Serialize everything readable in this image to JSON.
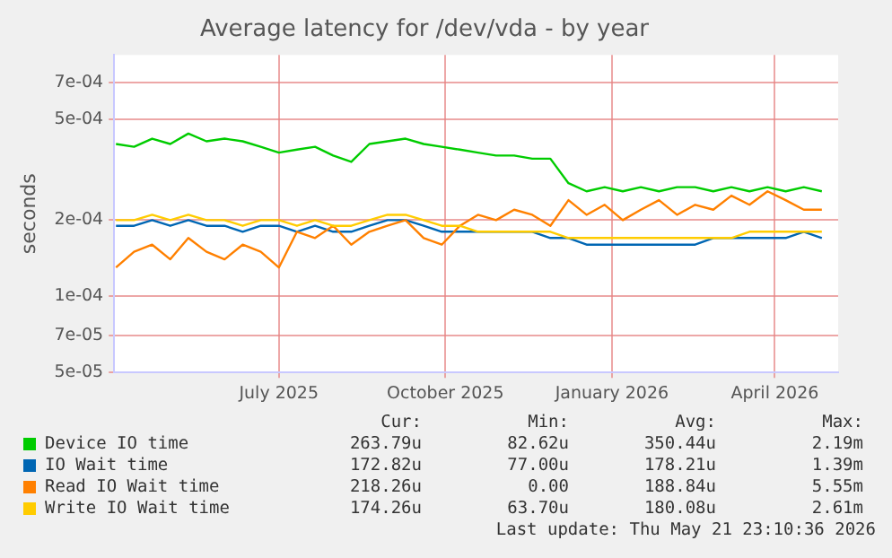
{
  "chart_data": {
    "type": "line",
    "title": "Average latency for /dev/vda - by year",
    "ylabel": "seconds",
    "log": "y",
    "grid": true,
    "legend": "bottom",
    "marker": "none",
    "line_style": "solid",
    "x": [
      "2025-04-17",
      "2025-04-27",
      "2025-05-07",
      "2025-05-17",
      "2025-05-27",
      "2025-06-06",
      "2025-06-16",
      "2025-06-26",
      "2025-07-06",
      "2025-07-16",
      "2025-07-26",
      "2025-08-05",
      "2025-08-15",
      "2025-08-25",
      "2025-09-04",
      "2025-09-14",
      "2025-09-24",
      "2025-10-04",
      "2025-10-14",
      "2025-10-24",
      "2025-11-03",
      "2025-11-13",
      "2025-11-23",
      "2025-12-03",
      "2025-12-13",
      "2025-12-23",
      "2026-01-02",
      "2026-01-12",
      "2026-01-22",
      "2026-02-01",
      "2026-02-11",
      "2026-02-21",
      "2026-03-03",
      "2026-03-13",
      "2026-03-23",
      "2026-04-02",
      "2026-04-12",
      "2026-04-22",
      "2026-05-02",
      "2026-05-12"
    ],
    "xlim": [
      "2025-04-16",
      "2026-05-21"
    ],
    "xticks": [
      {
        "value": "2025-07-16",
        "label": "July 2025"
      },
      {
        "value": "2025-10-16",
        "label": "October 2025"
      },
      {
        "value": "2026-01-16",
        "label": "January 2026"
      },
      {
        "value": "2026-04-16",
        "label": "April 2026"
      }
    ],
    "ylim": [
      5e-05,
      0.0009
    ],
    "yticks": [
      {
        "value": 5e-05,
        "label": "5e-05"
      },
      {
        "value": 7e-05,
        "label": "7e-05"
      },
      {
        "value": 0.0001,
        "label": "1e-04"
      },
      {
        "value": 0.0002,
        "label": "2e-04"
      },
      {
        "value": 0.0005,
        "label": "5e-04"
      },
      {
        "value": 0.0007,
        "label": "7e-04"
      }
    ],
    "series": [
      {
        "name": "Device IO time",
        "color": "#00cc00",
        "values": [
          0.0004,
          0.00039,
          0.00042,
          0.0004,
          0.00044,
          0.00041,
          0.00042,
          0.00041,
          0.00039,
          0.00037,
          0.00038,
          0.00039,
          0.00036,
          0.00034,
          0.0004,
          0.00041,
          0.00042,
          0.0004,
          0.00039,
          0.00038,
          0.00037,
          0.00036,
          0.00036,
          0.00035,
          0.00035,
          0.00028,
          0.00026,
          0.00027,
          0.00026,
          0.00027,
          0.00026,
          0.00027,
          0.00027,
          0.00026,
          0.00027,
          0.00026,
          0.00027,
          0.00026,
          0.00027,
          0.00026
        ]
      },
      {
        "name": "IO Wait time",
        "color": "#0066b3",
        "values": [
          0.00019,
          0.00019,
          0.0002,
          0.00019,
          0.0002,
          0.00019,
          0.00019,
          0.00018,
          0.00019,
          0.00019,
          0.00018,
          0.00019,
          0.00018,
          0.00018,
          0.00019,
          0.0002,
          0.0002,
          0.00019,
          0.00018,
          0.00018,
          0.00018,
          0.00018,
          0.00018,
          0.00018,
          0.00017,
          0.00017,
          0.00016,
          0.00016,
          0.00016,
          0.00016,
          0.00016,
          0.00016,
          0.00016,
          0.00017,
          0.00017,
          0.00017,
          0.00017,
          0.00017,
          0.00018,
          0.00017
        ]
      },
      {
        "name": "Read IO Wait time",
        "color": "#ff8000",
        "values": [
          0.00013,
          0.00015,
          0.00016,
          0.00014,
          0.00017,
          0.00015,
          0.00014,
          0.00016,
          0.00015,
          0.00013,
          0.00018,
          0.00017,
          0.00019,
          0.00016,
          0.00018,
          0.00019,
          0.0002,
          0.00017,
          0.00016,
          0.00019,
          0.00021,
          0.0002,
          0.00022,
          0.00021,
          0.00019,
          0.00024,
          0.00021,
          0.00023,
          0.0002,
          0.00022,
          0.00024,
          0.00021,
          0.00023,
          0.00022,
          0.00025,
          0.00023,
          0.00026,
          0.00024,
          0.00022,
          0.00022
        ]
      },
      {
        "name": "Write IO Wait time",
        "color": "#ffcc00",
        "values": [
          0.0002,
          0.0002,
          0.00021,
          0.0002,
          0.00021,
          0.0002,
          0.0002,
          0.00019,
          0.0002,
          0.0002,
          0.00019,
          0.0002,
          0.00019,
          0.00019,
          0.0002,
          0.00021,
          0.00021,
          0.0002,
          0.00019,
          0.00019,
          0.00018,
          0.00018,
          0.00018,
          0.00018,
          0.00018,
          0.00017,
          0.00017,
          0.00017,
          0.00017,
          0.00017,
          0.00017,
          0.00017,
          0.00017,
          0.00017,
          0.00017,
          0.00018,
          0.00018,
          0.00018,
          0.00018,
          0.00018
        ]
      }
    ],
    "annotations": [
      "Cur:",
      "Min:",
      "Avg:",
      "Max:",
      "263.79u",
      "82.62u",
      "350.44u",
      "2.19m",
      "172.82u",
      "77.00u",
      "178.21u",
      "1.39m",
      "218.26u",
      "0.00",
      "188.84u",
      "5.55m",
      "174.26u",
      "63.70u",
      "180.08u",
      "2.61m",
      "Last update: Thu May 21 23:10:36 2026"
    ]
  }
}
